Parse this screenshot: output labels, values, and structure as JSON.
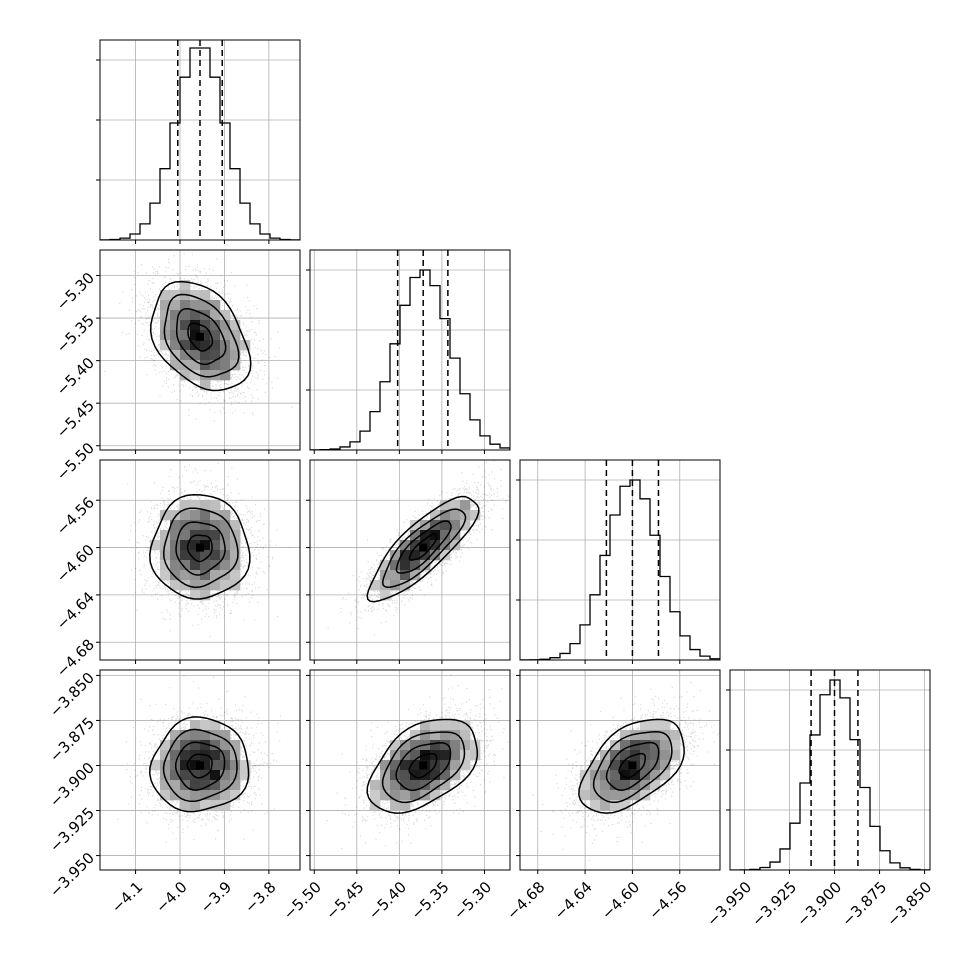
{
  "chart_data": {
    "type": "corner",
    "grid": true,
    "variables": [
      {
        "ticks": [
          -4.1,
          -4.0,
          -3.9,
          -3.8
        ],
        "tick_labels": [
          "−4.1",
          "−4.0",
          "−3.9",
          "−3.8"
        ],
        "range": [
          -4.18,
          -3.73
        ],
        "mean": -3.955,
        "sigma": 0.055,
        "quantiles": [
          -4.005,
          -3.955,
          -3.905
        ]
      },
      {
        "ticks": [
          -5.5,
          -5.45,
          -5.4,
          -5.35,
          -5.3
        ],
        "tick_labels": [
          "−5.50",
          "−5.45",
          "−5.40",
          "−5.35",
          "−5.30"
        ],
        "range": [
          -5.505,
          -5.27
        ],
        "mean": -5.372,
        "sigma": 0.032,
        "quantiles": [
          -5.402,
          -5.372,
          -5.343
        ]
      },
      {
        "ticks": [
          -4.68,
          -4.64,
          -4.6,
          -4.56
        ],
        "tick_labels": [
          "−4.68",
          "−4.64",
          "−4.60",
          "−4.56"
        ],
        "range": [
          -4.695,
          -4.526
        ],
        "mean": -4.6,
        "sigma": 0.022,
        "quantiles": [
          -4.622,
          -4.6,
          -4.578
        ]
      },
      {
        "ticks": [
          -3.95,
          -3.925,
          -3.9,
          -3.875,
          -3.85
        ],
        "tick_labels": [
          "−3.950",
          "−3.925",
          "−3.900",
          "−3.875",
          "−3.850"
        ],
        "range": [
          -3.958,
          -3.847
        ],
        "mean": -3.9,
        "sigma": 0.013,
        "quantiles": [
          -3.913,
          -3.9,
          -3.887
        ]
      }
    ],
    "correlations": [
      [
        0,
        1,
        -0.35
      ],
      [
        0,
        2,
        0.0
      ],
      [
        0,
        3,
        0.05
      ],
      [
        1,
        2,
        0.82
      ],
      [
        1,
        3,
        0.45
      ],
      [
        2,
        3,
        0.5
      ]
    ],
    "histogram_bins": 20,
    "hist_max": [
      0.96,
      0.9,
      0.9,
      0.95
    ],
    "contour_levels_sigma": [
      0.5,
      1.0,
      1.5,
      2.0
    ]
  }
}
